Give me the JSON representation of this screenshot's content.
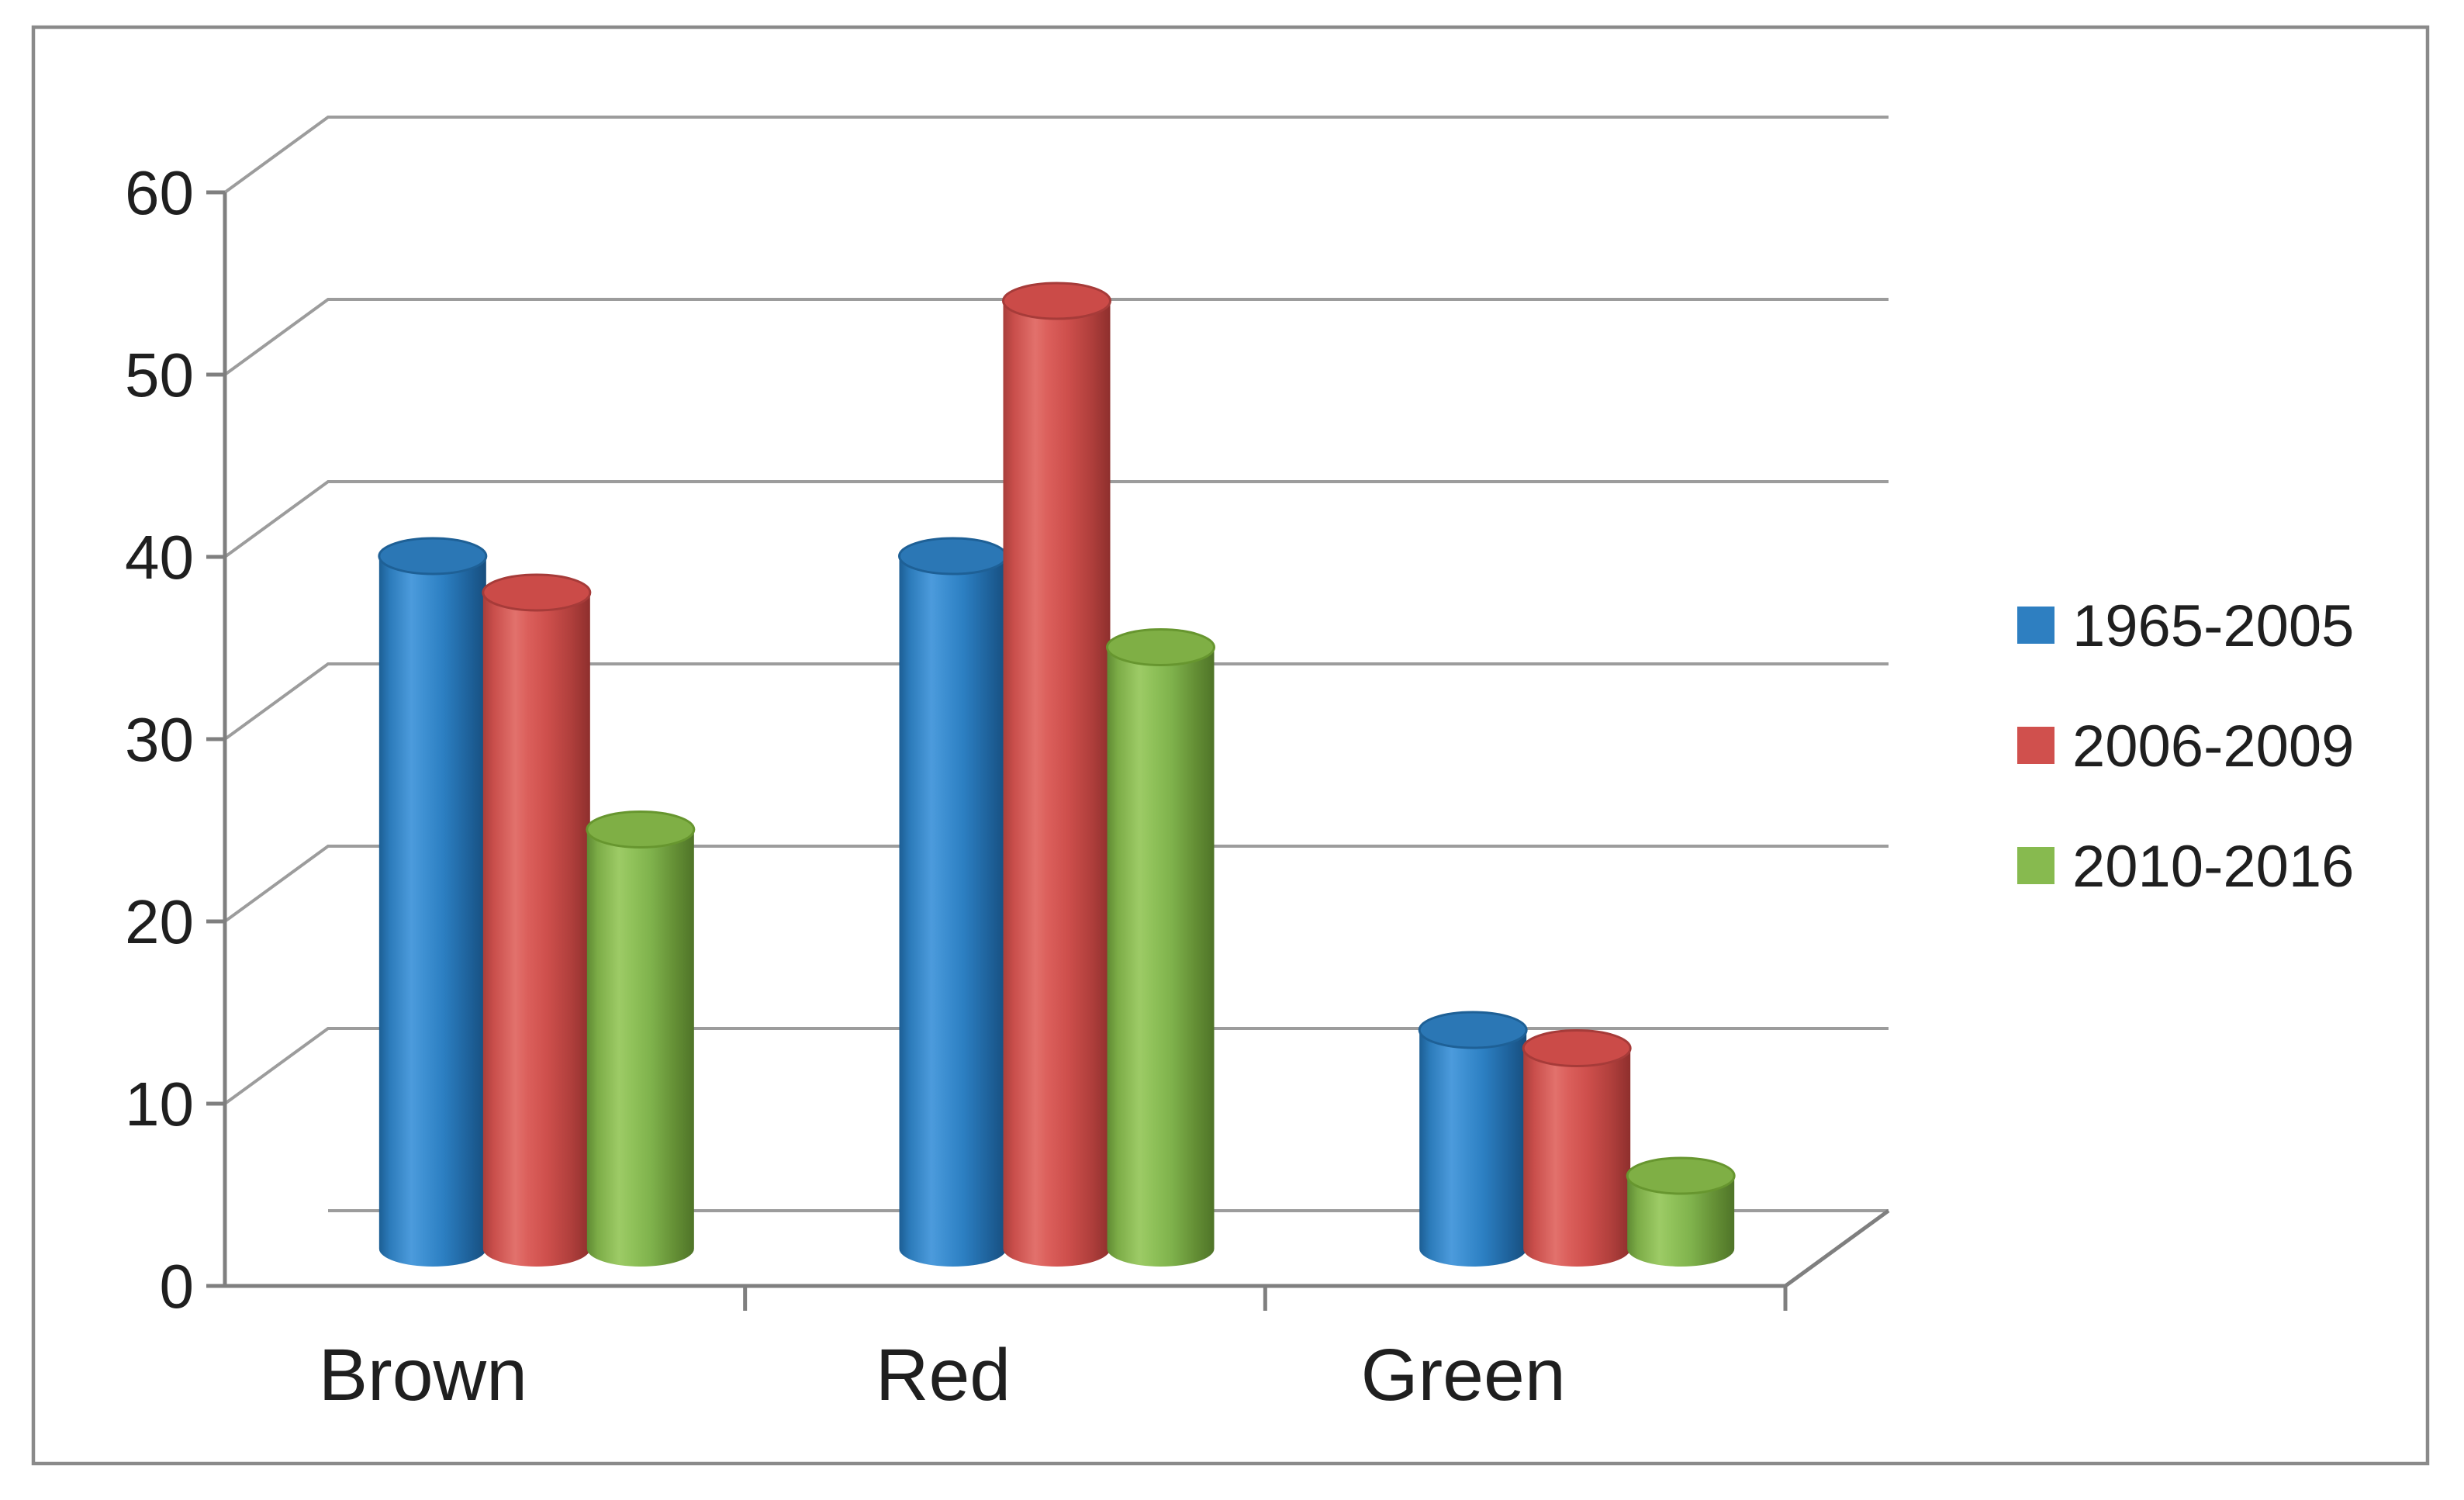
{
  "chart_data": {
    "type": "bar",
    "subtype": "3d-cylinder-clustered",
    "title": "",
    "xlabel": "",
    "ylabel": "",
    "categories": [
      "Brown",
      "Red",
      "Green"
    ],
    "series": [
      {
        "name": "1965-2005",
        "values": [
          38,
          38,
          12
        ],
        "color": "#2E7FC1",
        "gradient": [
          "#1C5E94",
          "#2C7BBA",
          "#4C9BDC",
          "#3E90D2",
          "#2C7FC2",
          "#1F649E",
          "#174E7E"
        ],
        "top_fill": "#2B77B5",
        "top_edge": "#1E6096"
      },
      {
        "name": "2006-2009",
        "values": [
          36,
          52,
          11
        ],
        "color": "#D0504D",
        "gradient": [
          "#A83E3B",
          "#C94E4B",
          "#E2716C",
          "#DB5F5B",
          "#CE4F4C",
          "#B03F3C",
          "#8E2F2D"
        ],
        "top_fill": "#CB4B48",
        "top_edge": "#A63B39"
      },
      {
        "name": "2010-2016",
        "values": [
          23,
          33,
          4
        ],
        "color": "#87BA4F",
        "gradient": [
          "#5F8A33",
          "#7CAC47",
          "#9DCB66",
          "#90C25A",
          "#7FB24C",
          "#648F35",
          "#4F7428"
        ],
        "top_fill": "#7FAF45",
        "top_edge": "#67962F"
      }
    ],
    "ylim": [
      0,
      60
    ],
    "ytick_step": 10,
    "yticks": [
      "0",
      "10",
      "20",
      "30",
      "40",
      "50",
      "60"
    ],
    "grid": true,
    "legend_position": "right"
  },
  "legend": {
    "items": [
      {
        "label": "1965-2005",
        "color": "#2E7FC1"
      },
      {
        "label": "2006-2009",
        "color": "#D0504D"
      },
      {
        "label": "2010-2016",
        "color": "#87BA4F"
      }
    ]
  },
  "style": {
    "background": "#FFFFFF",
    "frame_border": "#8A8A8A",
    "grid_color": "#9C9C9C",
    "axis_color": "#7F7F7F",
    "text_color": "#1F1F1F"
  }
}
